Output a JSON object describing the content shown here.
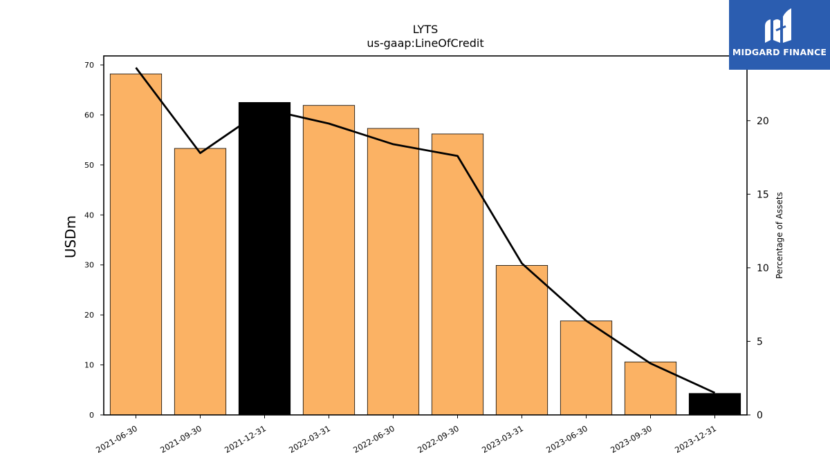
{
  "chart_data": {
    "type": "bar",
    "title": "LYTS",
    "subtitle": "us-gaap:LineOfCredit",
    "ylabel": "USDm",
    "y2label": "Percentage of Assets",
    "categories": [
      "2021-06-30",
      "2021-09-30",
      "2021-12-31",
      "2022-03-31",
      "2022-06-30",
      "2022-09-30",
      "2023-03-31",
      "2023-06-30",
      "2023-09-30",
      "2023-12-31"
    ],
    "series": [
      {
        "type": "bar",
        "axis": "left",
        "values": [
          68.2,
          53.3,
          62.5,
          61.9,
          57.3,
          56.2,
          29.9,
          18.8,
          10.6,
          4.3
        ],
        "colors": [
          "#fbb264",
          "#fbb264",
          "#000000",
          "#fbb264",
          "#fbb264",
          "#fbb264",
          "#fbb264",
          "#fbb264",
          "#fbb264",
          "#000000"
        ]
      },
      {
        "type": "line",
        "axis": "right",
        "color": "#000000",
        "values": [
          23.6,
          17.8,
          20.8,
          19.8,
          18.4,
          17.6,
          10.3,
          6.4,
          3.5,
          1.5
        ]
      }
    ],
    "ylim": [
      0,
      71.8
    ],
    "y2lim": [
      0,
      24.4
    ],
    "yticks": [
      0,
      10,
      20,
      30,
      40,
      50,
      60,
      70
    ],
    "y2ticks": [
      0,
      5,
      10,
      15,
      20
    ],
    "grid": false,
    "legend": "none"
  },
  "logo": {
    "text": "MIDGARD FINANCE"
  }
}
